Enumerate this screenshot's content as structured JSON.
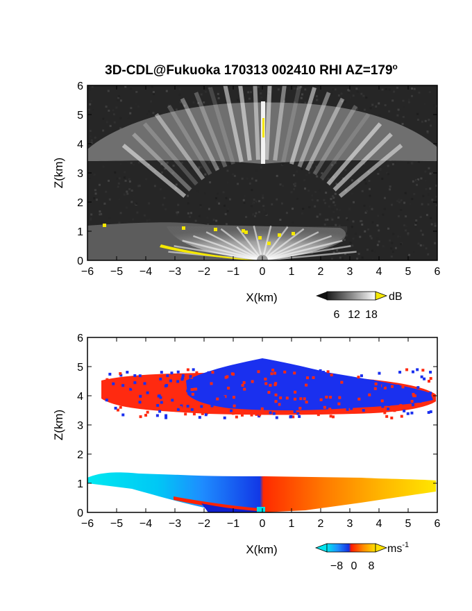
{
  "title": "3D-CDL@Fukuoka 170313 002410 RHI AZ=179",
  "title_superscript": "o",
  "chart_data": [
    {
      "type": "heatmap",
      "panel": "reflectivity",
      "xlabel": "X(km)",
      "ylabel": "Z(km)",
      "xlim": [
        -6,
        6
      ],
      "ylim": [
        0,
        6
      ],
      "xticks": [
        "-6",
        "-5",
        "-4",
        "-3",
        "-2",
        "-1",
        "0",
        "1",
        "2",
        "3",
        "4",
        "5",
        "6"
      ],
      "yticks": [
        "0",
        "1",
        "2",
        "3",
        "4",
        "5",
        "6"
      ],
      "colorbar": {
        "unit": "dB",
        "ticks": [
          "6",
          "12",
          "18"
        ],
        "colormap": "grayscale",
        "saturation_color": "#f5e800"
      },
      "layers": [
        {
          "name": "upper cloud",
          "z_bottom": 3.5,
          "z_top": 5.0,
          "x_extent": [
            -6,
            6
          ]
        },
        {
          "name": "lower cloud",
          "z_bottom": 0.0,
          "z_top": 1.3,
          "x_extent": [
            -6,
            2.8
          ]
        }
      ]
    },
    {
      "type": "heatmap",
      "panel": "doppler velocity",
      "xlabel": "X(km)",
      "ylabel": "Z(km)",
      "xlim": [
        -6,
        6
      ],
      "ylim": [
        0,
        6
      ],
      "xticks": [
        "-6",
        "-5",
        "-4",
        "-3",
        "-2",
        "-1",
        "0",
        "1",
        "2",
        "3",
        "4",
        "5",
        "6"
      ],
      "yticks": [
        "0",
        "1",
        "2",
        "3",
        "4",
        "5",
        "6"
      ],
      "colorbar": {
        "unit": "ms",
        "unit_superscript": "-1",
        "ticks": [
          "-8",
          "0",
          "8"
        ],
        "colormap": "cyan-blue-red-yellow"
      },
      "layers": [
        {
          "name": "upper cloud",
          "z_bottom": 3.3,
          "z_top": 5.3,
          "x_extent": [
            -5.5,
            6
          ]
        },
        {
          "name": "lower cloud",
          "z_bottom": 0.0,
          "z_top": 1.3,
          "x_extent": [
            -6,
            6
          ]
        }
      ]
    }
  ]
}
